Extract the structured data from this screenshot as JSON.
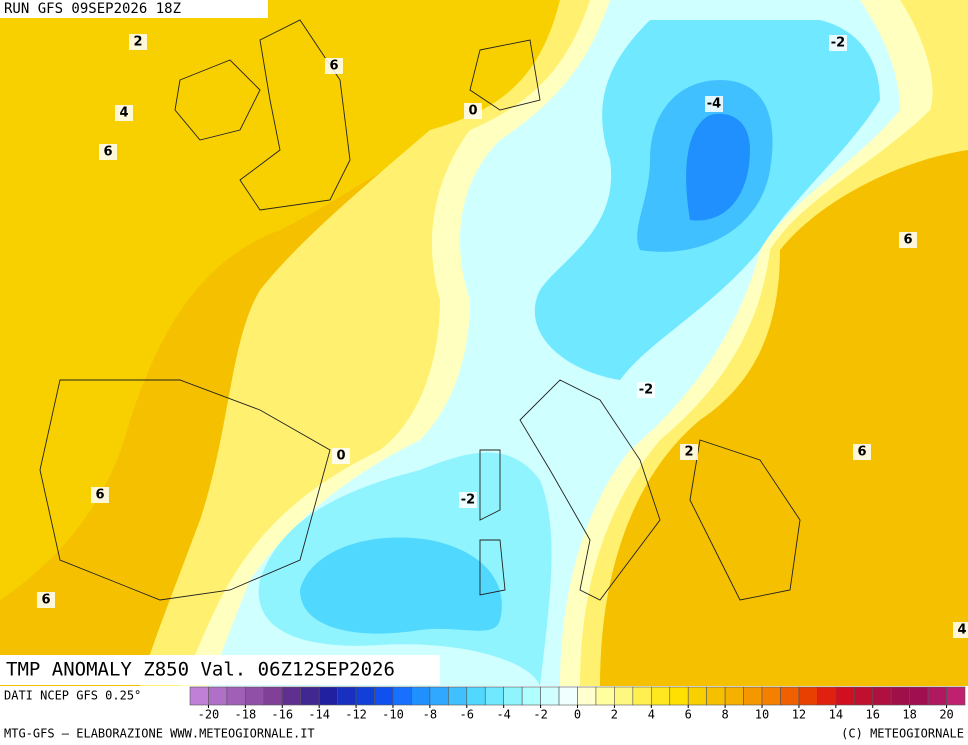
{
  "header": {
    "run": "RUN GFS 09SEP2026 18Z"
  },
  "map": {
    "title": "TMP ANOMALY Z850 Val. 06Z12SEP2026",
    "contour_labels": [
      "2",
      "6",
      "4",
      "6",
      "0",
      "-4",
      "-2",
      "6",
      "-2",
      "0",
      "2",
      "6",
      "-2",
      "6",
      "6",
      "4"
    ]
  },
  "colorbar": {
    "source": "DATI NCEP GFS 0.25°",
    "range": [
      -21,
      21
    ],
    "colors": [
      "#c080d8",
      "#b070c8",
      "#a060b8",
      "#9050a8",
      "#804098",
      "#603090",
      "#402890",
      "#2020a0",
      "#1830c0",
      "#1040d8",
      "#1050f0",
      "#1870ff",
      "#2090ff",
      "#30a8ff",
      "#40c0ff",
      "#50d8ff",
      "#70e8ff",
      "#90f4ff",
      "#b0ffff",
      "#d0ffff",
      "#f0ffff",
      "#ffffd0",
      "#ffffa0",
      "#fff880",
      "#fff050",
      "#ffe820",
      "#ffe000",
      "#f8d000",
      "#f5c000",
      "#f5b000",
      "#f59800",
      "#f58000",
      "#f06000",
      "#e84000",
      "#e02010",
      "#d01020",
      "#c01030",
      "#b01040",
      "#a01048",
      "#a01050",
      "#b01860",
      "#c02070"
    ],
    "ticks": [
      -20,
      -18,
      -16,
      -14,
      -12,
      -10,
      -8,
      -6,
      -4,
      -2,
      0,
      2,
      4,
      6,
      8,
      10,
      12,
      14,
      16,
      18,
      20
    ]
  },
  "footer": {
    "credit": "MTG-GFS — ELABORAZIONE WWW.METEOGIORNALE.IT",
    "copyright": "(C) METEOGIORNALE"
  }
}
